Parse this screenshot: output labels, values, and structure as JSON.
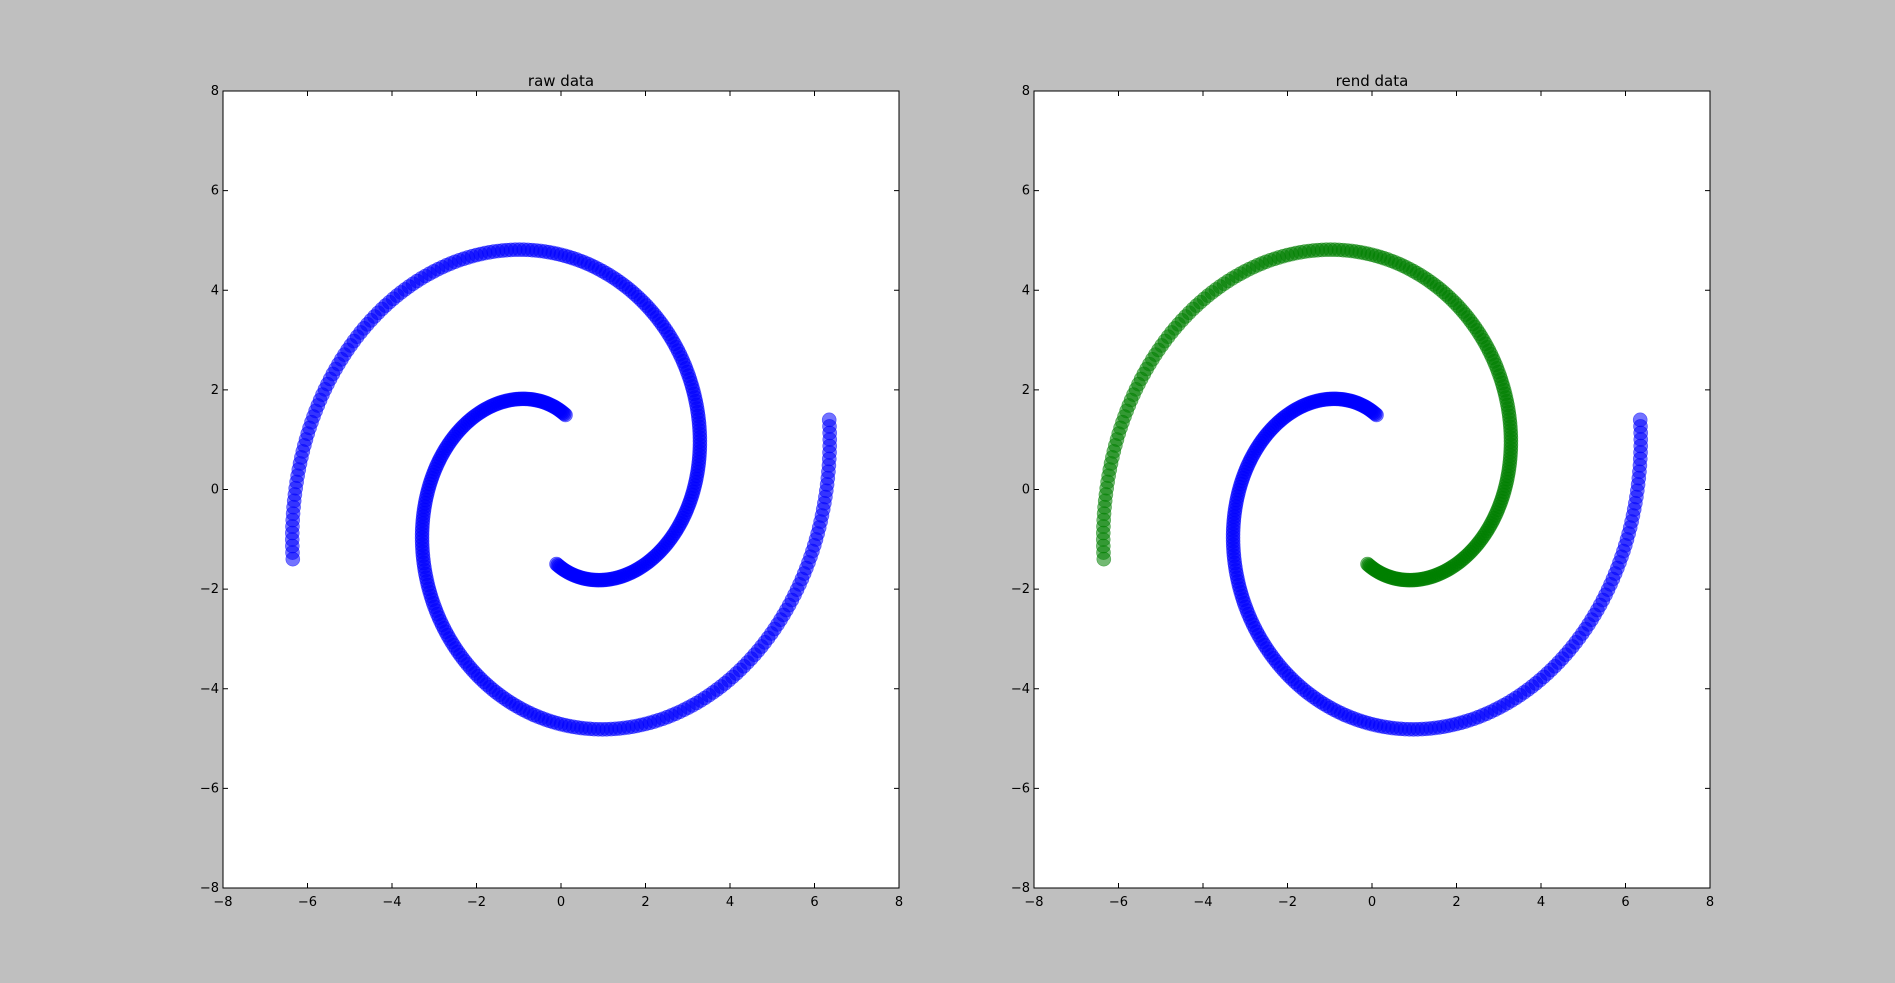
{
  "figure": {
    "background": "#bfbfbf"
  },
  "chart_data": [
    {
      "type": "scatter",
      "title": "raw data",
      "xlabel": "",
      "ylabel": "",
      "xlim": [
        -8,
        8
      ],
      "ylim": [
        -8,
        8
      ],
      "xticks": [
        -8,
        -6,
        -4,
        -2,
        0,
        2,
        4,
        6,
        8
      ],
      "yticks": [
        -8,
        -6,
        -4,
        -2,
        0,
        2,
        4,
        6,
        8
      ],
      "grid": false,
      "legend": "none",
      "series": [
        {
          "color": "#0000ff",
          "opacity": 0.55,
          "theta_start": 1.5,
          "theta_end": 6.5,
          "points": 250,
          "arm": "positive"
        },
        {
          "color": "#0000ff",
          "opacity": 0.55,
          "theta_start": 1.5,
          "theta_end": 6.5,
          "points": 250,
          "arm": "negative"
        }
      ]
    },
    {
      "type": "scatter",
      "title": "rend data",
      "xlabel": "",
      "ylabel": "",
      "xlim": [
        -8,
        8
      ],
      "ylim": [
        -8,
        8
      ],
      "xticks": [
        -8,
        -6,
        -4,
        -2,
        0,
        2,
        4,
        6,
        8
      ],
      "yticks": [
        -8,
        -6,
        -4,
        -2,
        0,
        2,
        4,
        6,
        8
      ],
      "grid": false,
      "legend": "none",
      "series": [
        {
          "color": "#0000ff",
          "opacity": 0.55,
          "theta_start": 1.5,
          "theta_end": 6.5,
          "points": 250,
          "arm": "positive"
        },
        {
          "color": "#008000",
          "opacity": 0.55,
          "theta_start": 1.5,
          "theta_end": 6.5,
          "points": 250,
          "arm": "negative"
        }
      ]
    }
  ]
}
